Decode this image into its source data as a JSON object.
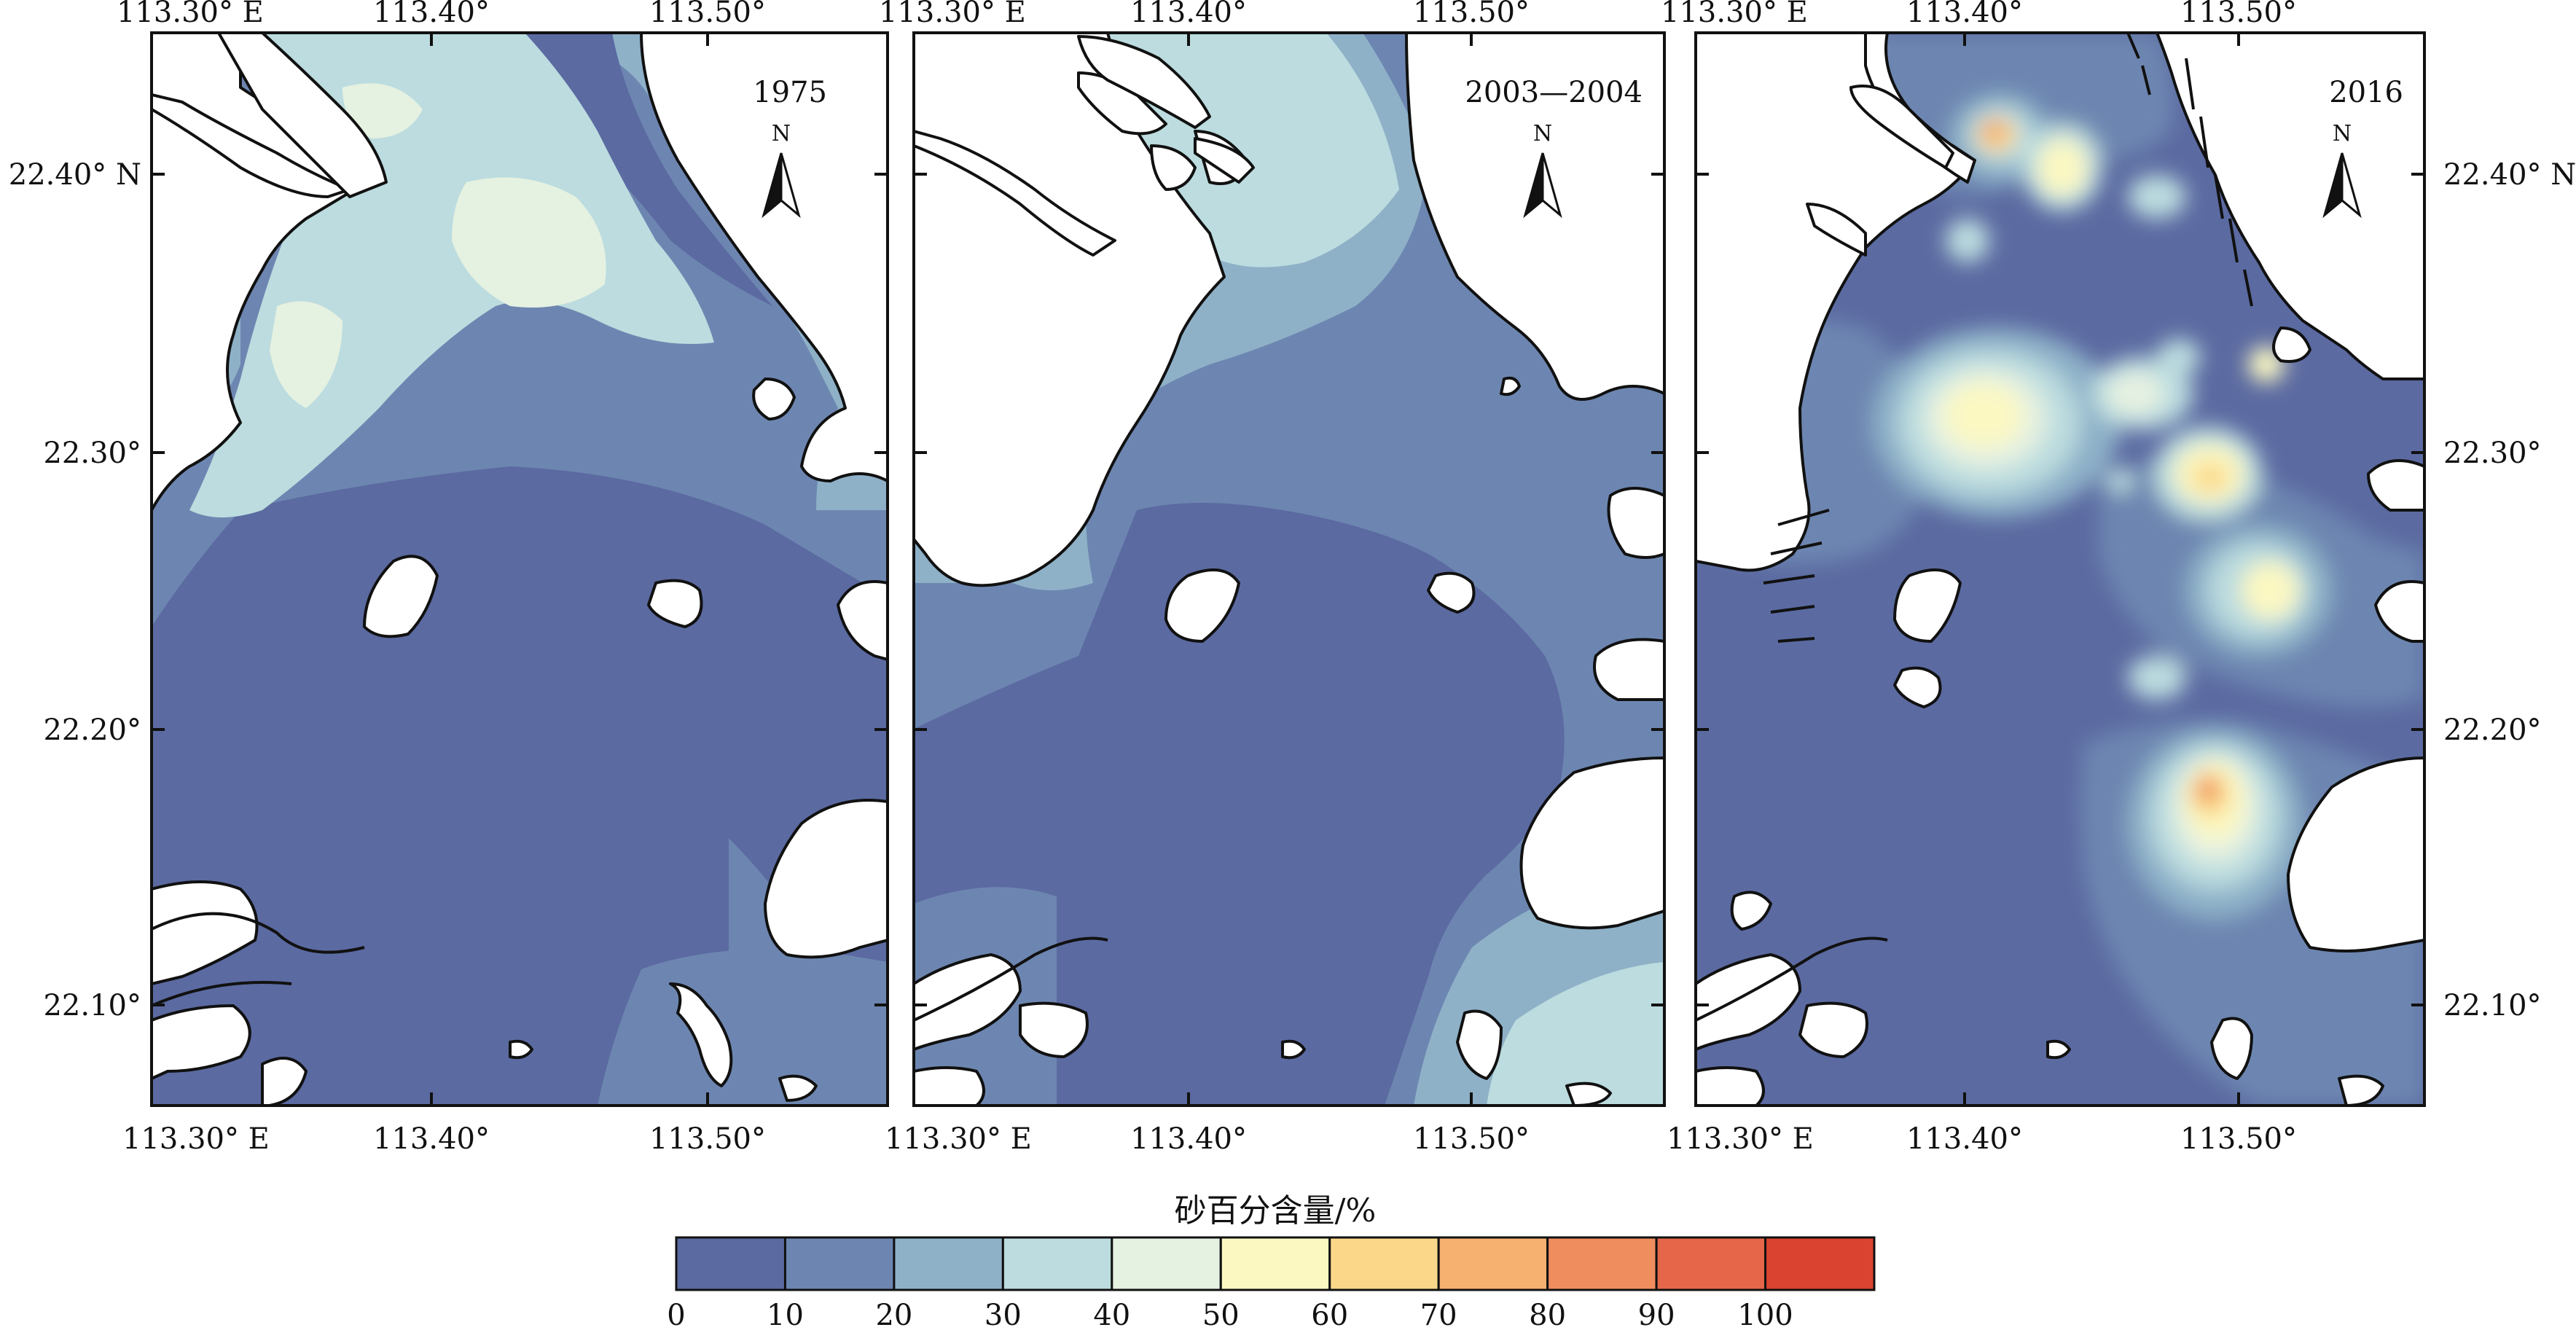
{
  "colors": {
    "land": "#ffffff",
    "coast": "#111111",
    "ramp": [
      "#5b6aa1",
      "#6d86b1",
      "#8eb1c8",
      "#bcdcdf",
      "#e5f1e1",
      "#fbf8c2",
      "#fbd889",
      "#f6b06f",
      "#ef8d5e",
      "#e56649",
      "#d9432f"
    ]
  },
  "panels": [
    {
      "label": "1975",
      "north_label": "N",
      "top_ticks": [
        "113.30° E",
        "113.40°",
        "113.50°"
      ],
      "bottom_ticks": [
        "113.30° E",
        "113.40°",
        "113.50°"
      ],
      "left_ticks": [
        "22.40° N",
        "22.30°",
        "22.20°",
        "22.10°"
      ],
      "right_ticks": []
    },
    {
      "label": "2003—2004",
      "north_label": "N",
      "top_ticks": [
        "113.30° E",
        "113.40°",
        "113.50°"
      ],
      "bottom_ticks": [
        "113.30° E",
        "113.40°",
        "113.50°"
      ],
      "left_ticks": [],
      "right_ticks": []
    },
    {
      "label": "2016",
      "north_label": "N",
      "top_ticks": [
        "113.30° E",
        "113.40°",
        "113.50°"
      ],
      "bottom_ticks": [
        "113.30° E",
        "113.40°",
        "113.50°"
      ],
      "left_ticks": [],
      "right_ticks": [
        "22.40° N",
        "22.30°",
        "22.20°",
        "22.10°"
      ]
    }
  ],
  "legend": {
    "title": "砂百分含量/%",
    "labels": [
      "0",
      "10",
      "20",
      "30",
      "40",
      "50",
      "60",
      "70",
      "80",
      "90",
      "100"
    ]
  }
}
